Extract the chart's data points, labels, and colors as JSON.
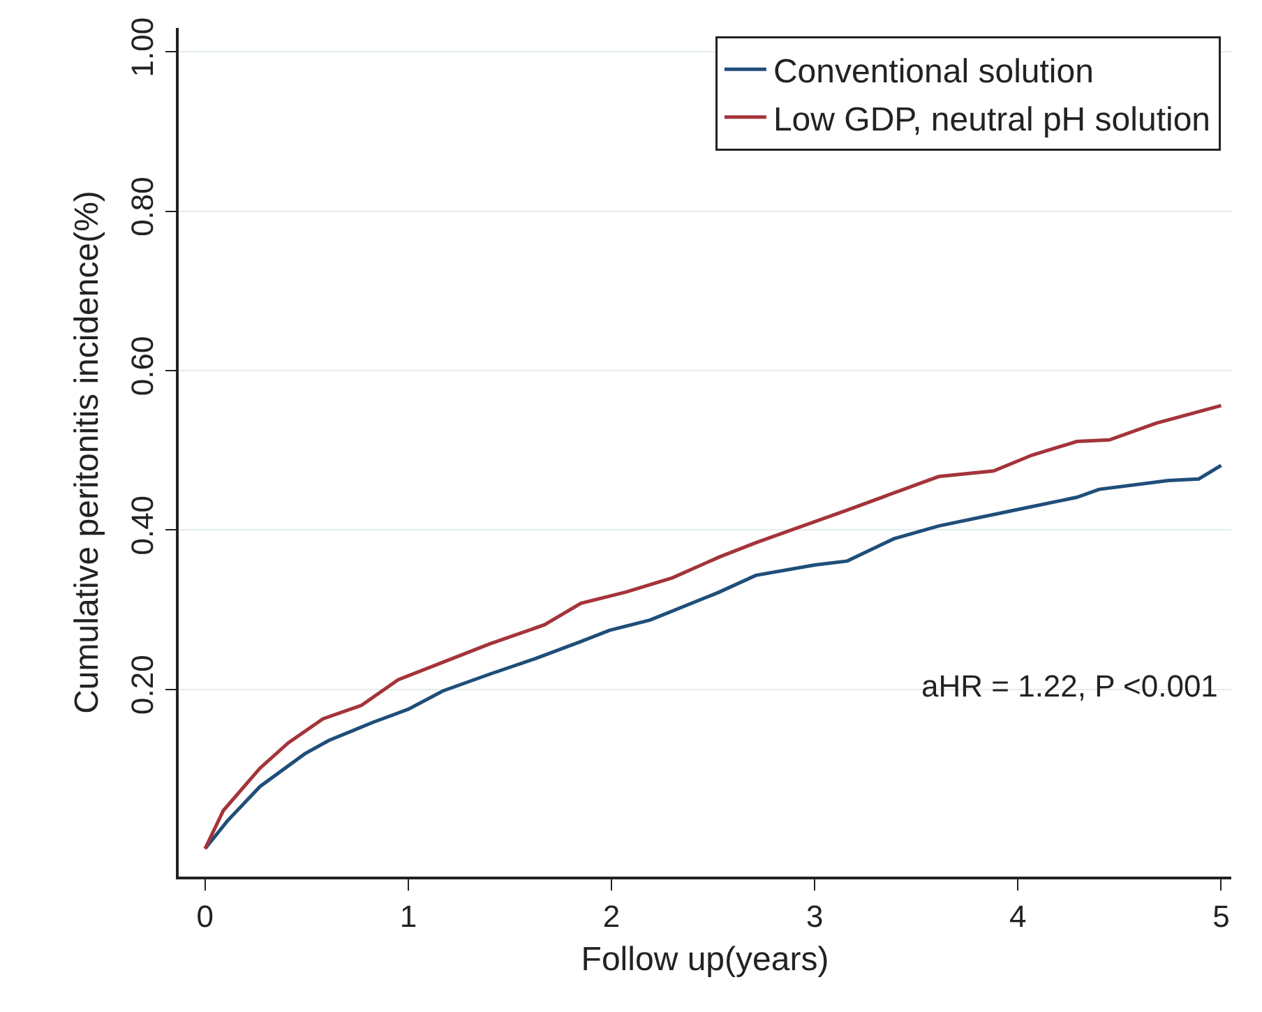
{
  "chart_data": {
    "type": "line",
    "xlabel": "Follow up(years)",
    "ylabel": "Cumulative peritonitis incidence(%)",
    "xlim": [
      -0.13,
      5.05
    ],
    "xticks": [
      0,
      1,
      2,
      3,
      4,
      5
    ],
    "ylim": [
      -0.035,
      1.03
    ],
    "yticks": [
      {
        "value": 0.2,
        "label": "0.20"
      },
      {
        "value": 0.4,
        "label": "0.40"
      },
      {
        "value": 0.6,
        "label": "0.60"
      },
      {
        "value": 0.8,
        "label": "0.80"
      },
      {
        "value": 1.0,
        "label": "1.00"
      }
    ],
    "grid": "y",
    "legend": "top right",
    "line_style": "solid",
    "marker": "none",
    "annotations": [
      "aHR = 1.22, P <0.001"
    ],
    "series": [
      {
        "name": "Conventional solution",
        "color": "#1f4e79",
        "x": [
          0,
          0.11,
          0.27,
          0.49,
          0.61,
          0.83,
          1.0,
          1.17,
          1.4,
          1.63,
          1.85,
          1.99,
          2.19,
          2.53,
          2.71,
          3.0,
          3.16,
          3.39,
          3.61,
          3.95,
          4.29,
          4.4,
          4.74,
          4.89,
          5.0
        ],
        "values": [
          0,
          0.035,
          0.078,
          0.119,
          0.136,
          0.159,
          0.175,
          0.198,
          0.219,
          0.239,
          0.26,
          0.274,
          0.287,
          0.322,
          0.343,
          0.356,
          0.361,
          0.389,
          0.405,
          0.423,
          0.441,
          0.451,
          0.462,
          0.464,
          0.481
        ]
      },
      {
        "name": "Low GDP, neutral pH solution",
        "color": "#a4343a",
        "x": [
          0,
          0.09,
          0.27,
          0.41,
          0.58,
          0.77,
          0.95,
          1.17,
          1.4,
          1.67,
          1.85,
          2.07,
          2.3,
          2.53,
          2.71,
          3.16,
          3.61,
          3.88,
          4.07,
          4.29,
          4.45,
          4.68,
          5.0
        ],
        "values": [
          0,
          0.048,
          0.101,
          0.133,
          0.163,
          0.18,
          0.212,
          0.234,
          0.257,
          0.281,
          0.308,
          0.322,
          0.34,
          0.366,
          0.384,
          0.425,
          0.467,
          0.474,
          0.494,
          0.511,
          0.513,
          0.534,
          0.556
        ]
      }
    ]
  }
}
